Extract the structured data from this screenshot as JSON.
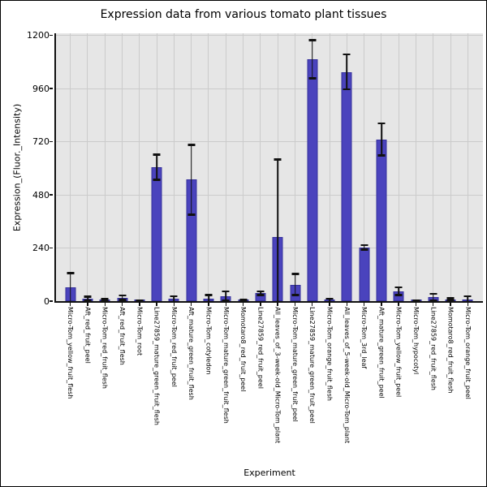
{
  "figure": {
    "title": "Expression data from various tomato plant tissues"
  },
  "chart_data": {
    "type": "bar",
    "title": "Expression data from various tomato plant tissues",
    "xlabel": "Experiment",
    "ylabel": "Expression_(Fluor._Intensity)",
    "ylim": [
      0,
      1200
    ],
    "yticks": [
      0,
      240,
      480,
      720,
      960,
      1200
    ],
    "grid": "on",
    "legend": "none",
    "plot_bg": "#e6e6e6",
    "grid_color": "#cbcbcb",
    "bar_color": "#4a43bd",
    "bar_edge_color": "#37329c",
    "error_color": "#111111",
    "categories": [
      "Micro-Tom_yellow_fruit_flesh",
      "Aft_red_fruit_peel",
      "Micro-Tom_red_fruit_flesh",
      "Aft_red_fruit_flesh",
      "Micro-Tom_root",
      "Line27859_mature_green_fruit_flesh",
      "Micro-Tom_red_fruit_peel",
      "Aft_mature_green_fruit_flesh",
      "Micro-Tom_cotyledon",
      "Micro-Tom_mature_green_fruit_flesh",
      "Momotaro8_red_fruit_peel",
      "Line27859_red_fruit_peel",
      "All_leaves_of_3-week-old_Micro-Tom_plant",
      "Micro-Tom_mature_green_fruit_peel",
      "Line27859_mature_green_fruit_peel",
      "Micro-Tom_orange_fruit_flesh",
      "All_leaves_of_5-week-old_Micro-Tom_plant",
      "Micro-Tom_3rd_leaf",
      "Aft_mature_green_fruit_peel",
      "Micro-Tom_yellow_fruit_peel",
      "Micro-Tom_hypocotyl",
      "Line27859_red_fruit_flesh",
      "Momotaro8_red_fruit_flesh",
      "Micro-Tom_orange_fruit_peel"
    ],
    "values": [
      62,
      12,
      5,
      15,
      2,
      605,
      10,
      548,
      10,
      23,
      2,
      36,
      289,
      75,
      1092,
      5,
      1035,
      243,
      730,
      45,
      1,
      18,
      8,
      7
    ],
    "errors": [
      65,
      8,
      4,
      10,
      2,
      57,
      13,
      158,
      18,
      20,
      3,
      8,
      350,
      48,
      86,
      6,
      78,
      10,
      72,
      17,
      2,
      14,
      5,
      16
    ]
  }
}
